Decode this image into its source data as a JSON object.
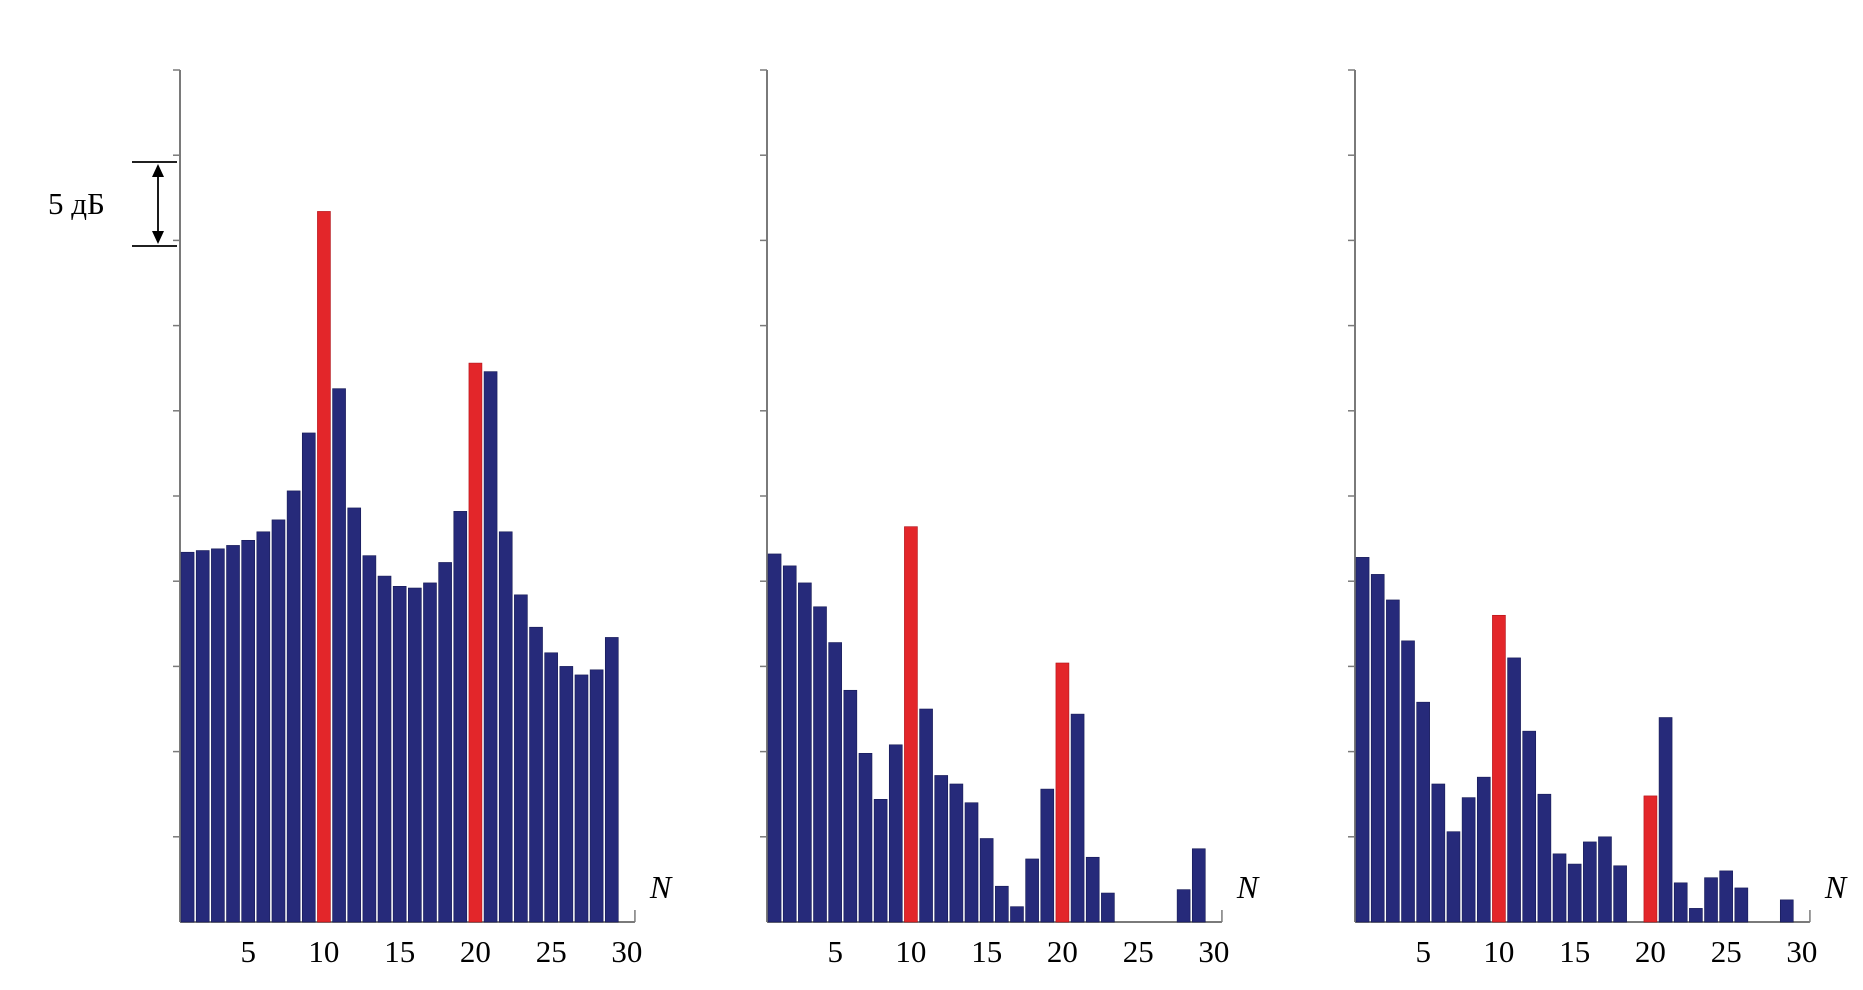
{
  "scale_marker": {
    "label": "5 дБ",
    "step_db": 5
  },
  "colors": {
    "bar": "#262a7a",
    "highlight": "#e3262a",
    "axis": "#7a7a7a"
  },
  "chart_data": [
    {
      "type": "bar",
      "xlabel": "N",
      "ylabel": "",
      "x_ticks": [
        "5",
        "10",
        "15",
        "20",
        "25",
        "30"
      ],
      "ylim": [
        0,
        50
      ],
      "y_major_step": 5,
      "categories": [
        1,
        2,
        3,
        4,
        5,
        6,
        7,
        8,
        9,
        10,
        11,
        12,
        13,
        14,
        15,
        16,
        17,
        18,
        19,
        20,
        21,
        22,
        23,
        24,
        25,
        26,
        27,
        28,
        29
      ],
      "values": [
        21.7,
        21.8,
        21.9,
        22.1,
        22.4,
        22.9,
        23.6,
        25.3,
        28.7,
        41.7,
        31.3,
        24.3,
        21.5,
        20.3,
        19.7,
        19.6,
        19.9,
        21.1,
        24.1,
        32.8,
        32.3,
        22.9,
        19.2,
        17.3,
        15.8,
        15.0,
        14.5,
        14.8,
        16.7
      ],
      "highlight_categories": [
        10,
        20
      ]
    },
    {
      "type": "bar",
      "xlabel": "N",
      "ylabel": "",
      "x_ticks": [
        "5",
        "10",
        "15",
        "20",
        "25",
        "30"
      ],
      "ylim": [
        0,
        50
      ],
      "y_major_step": 5,
      "categories": [
        1,
        2,
        3,
        4,
        5,
        6,
        7,
        8,
        9,
        10,
        11,
        12,
        13,
        14,
        15,
        16,
        17,
        18,
        19,
        20,
        21,
        22,
        23,
        24,
        25,
        26,
        27,
        28,
        29
      ],
      "values": [
        21.6,
        20.9,
        19.9,
        18.5,
        16.4,
        13.6,
        9.9,
        7.2,
        10.4,
        23.2,
        12.5,
        8.6,
        8.1,
        7.0,
        4.9,
        2.1,
        0.9,
        3.7,
        7.8,
        15.2,
        12.2,
        3.8,
        1.7,
        0,
        0,
        0,
        0,
        1.9,
        4.3
      ],
      "highlight_categories": [
        10,
        20
      ]
    },
    {
      "type": "bar",
      "xlabel": "N",
      "ylabel": "",
      "x_ticks": [
        "5",
        "10",
        "15",
        "20",
        "25",
        "30"
      ],
      "ylim": [
        0,
        50
      ],
      "y_major_step": 5,
      "categories": [
        1,
        2,
        3,
        4,
        5,
        6,
        7,
        8,
        9,
        10,
        11,
        12,
        13,
        14,
        15,
        16,
        17,
        18,
        19,
        20,
        21,
        22,
        23,
        24,
        25,
        26,
        27,
        28,
        29
      ],
      "values": [
        21.4,
        20.4,
        18.9,
        16.5,
        12.9,
        8.1,
        5.3,
        7.3,
        8.5,
        18.0,
        15.5,
        11.2,
        7.5,
        4.0,
        3.4,
        4.7,
        5.0,
        3.3,
        0,
        7.4,
        12.0,
        2.3,
        0.8,
        2.6,
        3.0,
        2.0,
        0,
        0,
        1.3
      ],
      "highlight_categories": [
        10,
        20
      ]
    }
  ]
}
